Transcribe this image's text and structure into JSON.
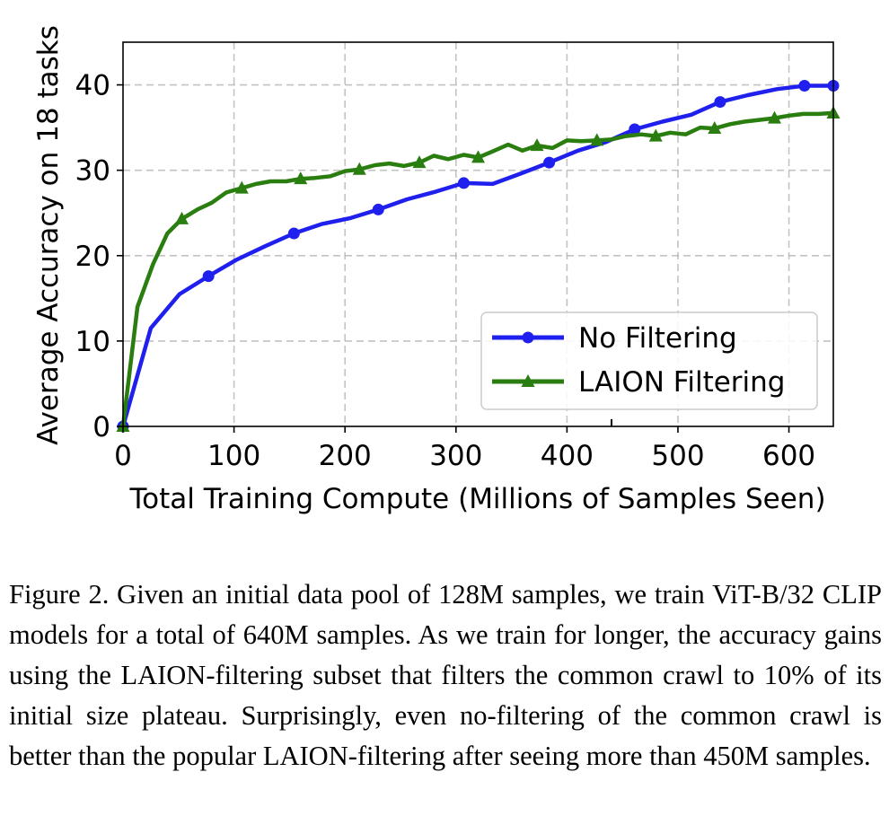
{
  "chart_data": {
    "type": "line",
    "xlabel": "Total Training Compute (Millions of Samples Seen)",
    "ylabel": "Average Accuracy on 18 tasks",
    "xlim": [
      0,
      640
    ],
    "ylim": [
      0,
      45
    ],
    "xticks": [
      0,
      100,
      200,
      300,
      400,
      500,
      600
    ],
    "yticks": [
      0,
      10,
      20,
      30,
      40
    ],
    "grid": true,
    "legend_position": "lower-right",
    "series": [
      {
        "name": "No Filtering",
        "color": "#1f1fee",
        "marker": "circle",
        "x": [
          0,
          25,
          51,
          77,
          102,
          128,
          154,
          179,
          205,
          230,
          256,
          282,
          307,
          333,
          358,
          384,
          410,
          435,
          461,
          486,
          512,
          538,
          563,
          589,
          614,
          640
        ],
        "y": [
          0,
          11.5,
          15.5,
          17.6,
          19.5,
          21.1,
          22.6,
          23.7,
          24.4,
          25.4,
          26.6,
          27.5,
          28.5,
          28.4,
          29.6,
          30.9,
          32.3,
          33.3,
          34.8,
          35.7,
          36.5,
          38.0,
          38.8,
          39.5,
          39.9,
          39.9
        ]
      },
      {
        "name": "LAION Filtering",
        "color": "#2a7d0f",
        "marker": "triangle",
        "x": [
          0,
          13,
          27,
          40,
          53,
          67,
          80,
          93,
          107,
          120,
          133,
          147,
          160,
          173,
          187,
          200,
          213,
          227,
          240,
          253,
          267,
          280,
          293,
          307,
          320,
          333,
          347,
          360,
          373,
          387,
          400,
          413,
          427,
          440,
          453,
          467,
          480,
          493,
          507,
          520,
          533,
          547,
          560,
          573,
          587,
          600,
          613,
          627,
          640
        ],
        "y": [
          0,
          14.0,
          19.0,
          22.6,
          24.3,
          25.4,
          26.2,
          27.4,
          27.9,
          28.4,
          28.7,
          28.7,
          29.0,
          29.1,
          29.3,
          29.9,
          30.1,
          30.6,
          30.8,
          30.5,
          30.9,
          31.7,
          31.3,
          31.8,
          31.5,
          32.2,
          33.0,
          32.3,
          32.9,
          32.6,
          33.5,
          33.4,
          33.5,
          33.6,
          34.0,
          34.2,
          34.0,
          34.4,
          34.2,
          35.0,
          34.9,
          35.4,
          35.7,
          35.9,
          36.1,
          36.4,
          36.6,
          36.6,
          36.7
        ]
      }
    ]
  },
  "caption": "Figure 2.  Given an initial data pool of 128M samples, we train ViT-B/32 CLIP models for a total of 640M samples. As we train for longer, the accuracy gains using the LAION-filtering subset that filters the common crawl to 10% of its initial size plateau. Surprisingly, even no-filtering of the common crawl is better than the popular LAION-filtering after seeing more than 450M samples."
}
